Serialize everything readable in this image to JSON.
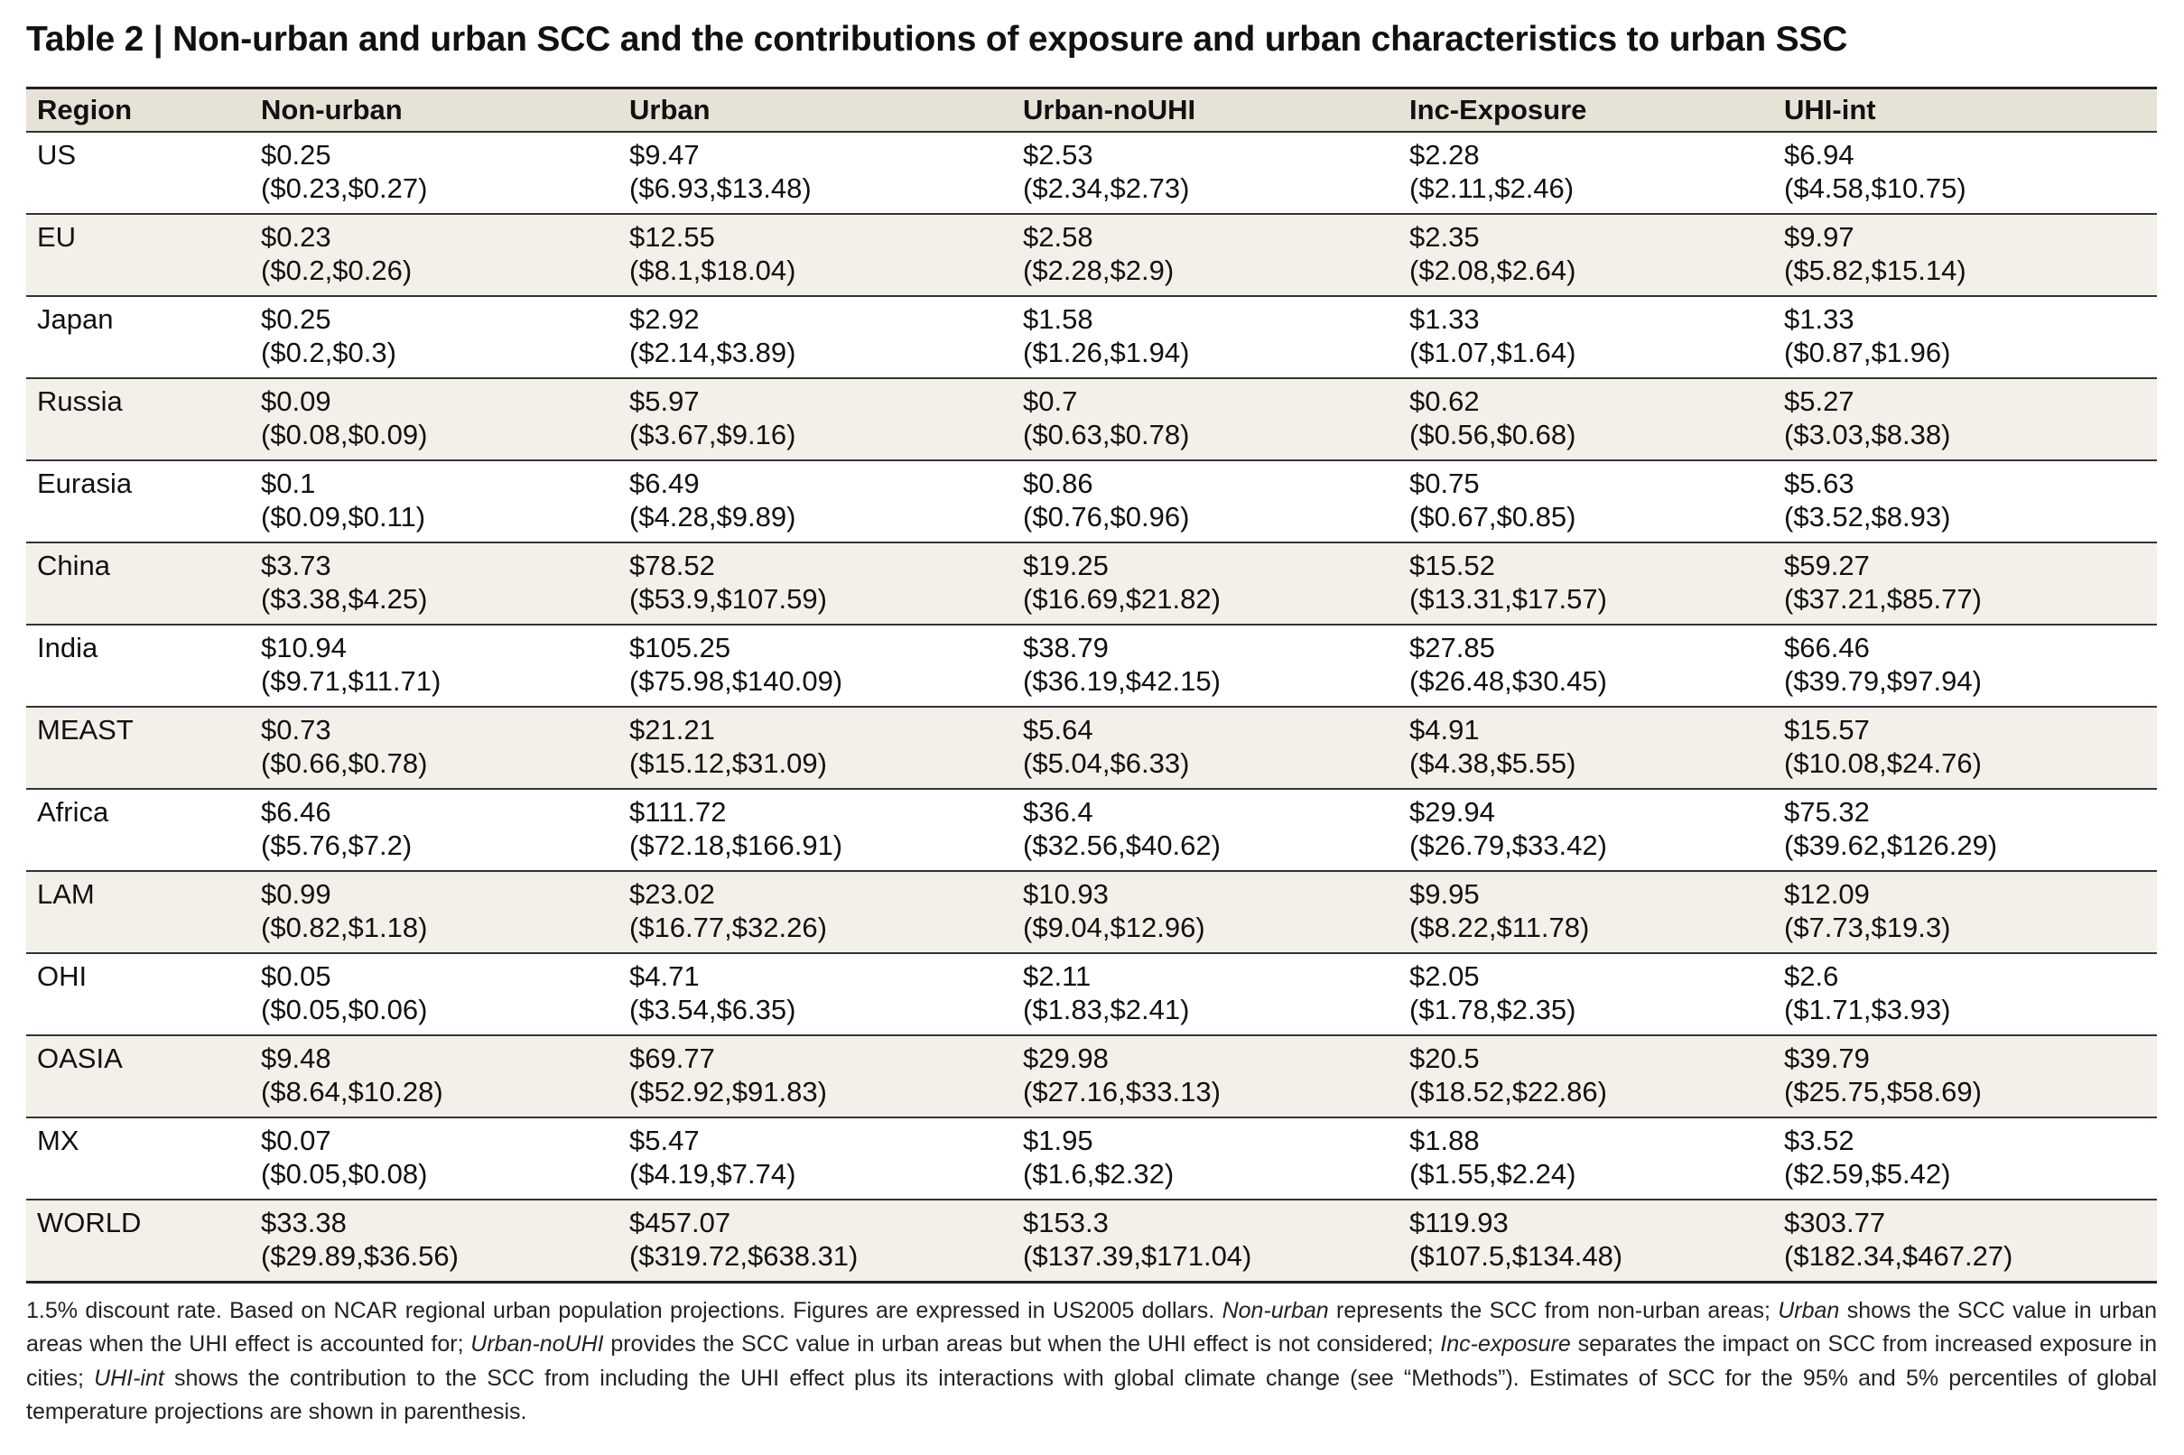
{
  "title": "Table 2 | Non-urban and urban SCC and the contributions of exposure and urban characteristics to urban SSC",
  "table": {
    "headers": [
      "Region",
      "Non-urban",
      "Urban",
      "Urban-noUHI",
      "Inc-Exposure",
      "UHI-int"
    ],
    "rows": [
      {
        "region": "US",
        "cells": [
          {
            "value": "$0.25",
            "range": "($0.23,$0.27)"
          },
          {
            "value": "$9.47",
            "range": "($6.93,$13.48)"
          },
          {
            "value": "$2.53",
            "range": "($2.34,$2.73)"
          },
          {
            "value": "$2.28",
            "range": "($2.11,$2.46)"
          },
          {
            "value": "$6.94",
            "range": "($4.58,$10.75)"
          }
        ]
      },
      {
        "region": "EU",
        "cells": [
          {
            "value": "$0.23",
            "range": "($0.2,$0.26)"
          },
          {
            "value": "$12.55",
            "range": "($8.1,$18.04)"
          },
          {
            "value": "$2.58",
            "range": "($2.28,$2.9)"
          },
          {
            "value": "$2.35",
            "range": "($2.08,$2.64)"
          },
          {
            "value": "$9.97",
            "range": "($5.82,$15.14)"
          }
        ]
      },
      {
        "region": "Japan",
        "cells": [
          {
            "value": "$0.25",
            "range": "($0.2,$0.3)"
          },
          {
            "value": "$2.92",
            "range": "($2.14,$3.89)"
          },
          {
            "value": "$1.58",
            "range": "($1.26,$1.94)"
          },
          {
            "value": "$1.33",
            "range": "($1.07,$1.64)"
          },
          {
            "value": "$1.33",
            "range": "($0.87,$1.96)"
          }
        ]
      },
      {
        "region": "Russia",
        "cells": [
          {
            "value": "$0.09",
            "range": "($0.08,$0.09)"
          },
          {
            "value": "$5.97",
            "range": "($3.67,$9.16)"
          },
          {
            "value": "$0.7",
            "range": "($0.63,$0.78)"
          },
          {
            "value": "$0.62",
            "range": "($0.56,$0.68)"
          },
          {
            "value": "$5.27",
            "range": "($3.03,$8.38)"
          }
        ]
      },
      {
        "region": "Eurasia",
        "cells": [
          {
            "value": "$0.1",
            "range": "($0.09,$0.11)"
          },
          {
            "value": "$6.49",
            "range": "($4.28,$9.89)"
          },
          {
            "value": "$0.86",
            "range": "($0.76,$0.96)"
          },
          {
            "value": "$0.75",
            "range": "($0.67,$0.85)"
          },
          {
            "value": "$5.63",
            "range": "($3.52,$8.93)"
          }
        ]
      },
      {
        "region": "China",
        "cells": [
          {
            "value": "$3.73",
            "range": "($3.38,$4.25)"
          },
          {
            "value": "$78.52",
            "range": "($53.9,$107.59)"
          },
          {
            "value": "$19.25",
            "range": "($16.69,$21.82)"
          },
          {
            "value": "$15.52",
            "range": "($13.31,$17.57)"
          },
          {
            "value": "$59.27",
            "range": "($37.21,$85.77)"
          }
        ]
      },
      {
        "region": "India",
        "cells": [
          {
            "value": "$10.94",
            "range": "($9.71,$11.71)"
          },
          {
            "value": "$105.25",
            "range": "($75.98,$140.09)"
          },
          {
            "value": "$38.79",
            "range": "($36.19,$42.15)"
          },
          {
            "value": "$27.85",
            "range": "($26.48,$30.45)"
          },
          {
            "value": "$66.46",
            "range": "($39.79,$97.94)"
          }
        ]
      },
      {
        "region": "MEAST",
        "cells": [
          {
            "value": "$0.73",
            "range": "($0.66,$0.78)"
          },
          {
            "value": "$21.21",
            "range": "($15.12,$31.09)"
          },
          {
            "value": "$5.64",
            "range": "($5.04,$6.33)"
          },
          {
            "value": "$4.91",
            "range": "($4.38,$5.55)"
          },
          {
            "value": "$15.57",
            "range": "($10.08,$24.76)"
          }
        ]
      },
      {
        "region": "Africa",
        "cells": [
          {
            "value": "$6.46",
            "range": "($5.76,$7.2)"
          },
          {
            "value": "$111.72",
            "range": "($72.18,$166.91)"
          },
          {
            "value": "$36.4",
            "range": "($32.56,$40.62)"
          },
          {
            "value": "$29.94",
            "range": "($26.79,$33.42)"
          },
          {
            "value": "$75.32",
            "range": "($39.62,$126.29)"
          }
        ]
      },
      {
        "region": "LAM",
        "cells": [
          {
            "value": "$0.99",
            "range": "($0.82,$1.18)"
          },
          {
            "value": "$23.02",
            "range": "($16.77,$32.26)"
          },
          {
            "value": "$10.93",
            "range": "($9.04,$12.96)"
          },
          {
            "value": "$9.95",
            "range": "($8.22,$11.78)"
          },
          {
            "value": "$12.09",
            "range": "($7.73,$19.3)"
          }
        ]
      },
      {
        "region": "OHI",
        "cells": [
          {
            "value": "$0.05",
            "range": "($0.05,$0.06)"
          },
          {
            "value": "$4.71",
            "range": "($3.54,$6.35)"
          },
          {
            "value": "$2.11",
            "range": "($1.83,$2.41)"
          },
          {
            "value": "$2.05",
            "range": "($1.78,$2.35)"
          },
          {
            "value": "$2.6",
            "range": "($1.71,$3.93)"
          }
        ]
      },
      {
        "region": "OASIA",
        "cells": [
          {
            "value": "$9.48",
            "range": "($8.64,$10.28)"
          },
          {
            "value": "$69.77",
            "range": "($52.92,$91.83)"
          },
          {
            "value": "$29.98",
            "range": "($27.16,$33.13)"
          },
          {
            "value": "$20.5",
            "range": "($18.52,$22.86)"
          },
          {
            "value": "$39.79",
            "range": "($25.75,$58.69)"
          }
        ]
      },
      {
        "region": "MX",
        "cells": [
          {
            "value": "$0.07",
            "range": "($0.05,$0.08)"
          },
          {
            "value": "$5.47",
            "range": "($4.19,$7.74)"
          },
          {
            "value": "$1.95",
            "range": "($1.6,$2.32)"
          },
          {
            "value": "$1.88",
            "range": "($1.55,$2.24)"
          },
          {
            "value": "$3.52",
            "range": "($2.59,$5.42)"
          }
        ]
      },
      {
        "region": "WORLD",
        "cells": [
          {
            "value": "$33.38",
            "range": "($29.89,$36.56)"
          },
          {
            "value": "$457.07",
            "range": "($319.72,$638.31)"
          },
          {
            "value": "$153.3",
            "range": "($137.39,$171.04)"
          },
          {
            "value": "$119.93",
            "range": "($107.5,$134.48)"
          },
          {
            "value": "$303.77",
            "range": "($182.34,$467.27)"
          }
        ]
      }
    ]
  },
  "footnote": {
    "p1": "1.5% discount rate. Based on NCAR regional urban population projections. Figures are expressed in US2005 dollars. ",
    "t1": "Non-urban",
    "p2": " represents the SCC from non-urban areas; ",
    "t2": "Urban",
    "p3": " shows the SCC value in urban areas when the UHI effect is accounted for; ",
    "t3": "Urban-noUHI",
    "p4": " provides the SCC value in urban areas but when the UHI effect is not considered; ",
    "t4": "Inc-exposure",
    "p5": " separates the impact on SCC from increased exposure in cities; ",
    "t5": "UHI-int",
    "p6": " shows the contribution to the SCC from including the UHI effect plus its interactions with global climate change (see “Methods”). Estimates of SCC for the 95% and 5% percentiles of global temperature projections are shown in parenthesis."
  }
}
